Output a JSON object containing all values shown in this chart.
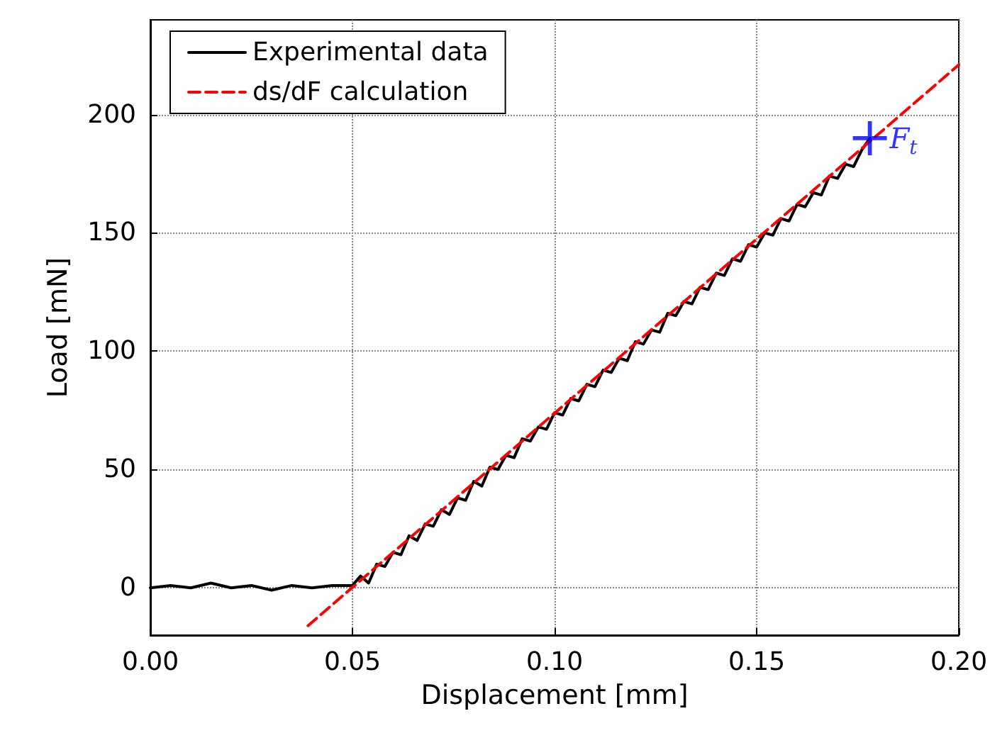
{
  "chart_data": {
    "type": "line",
    "xlabel": "Displacement [mm]",
    "ylabel": "Load [mN]",
    "xlim": [
      0,
      0.2
    ],
    "ylim": [
      -20,
      240
    ],
    "xticks": [
      {
        "value": 0,
        "label": "0.00"
      },
      {
        "value": 0.05,
        "label": "0.05"
      },
      {
        "value": 0.1,
        "label": "0.10"
      },
      {
        "value": 0.15,
        "label": "0.15"
      },
      {
        "value": 0.2,
        "label": "0.20"
      }
    ],
    "yticks": [
      0,
      50,
      100,
      150,
      200
    ],
    "grid": true,
    "legend": "top left",
    "marker": "none",
    "series": [
      {
        "name": "Experimental data",
        "color": "#000000",
        "line_style": "solid",
        "x": [
          0,
          0.005,
          0.01,
          0.015,
          0.02,
          0.025,
          0.03,
          0.035,
          0.04,
          0.045,
          0.05,
          0.052,
          0.054,
          0.056,
          0.058,
          0.06,
          0.062,
          0.064,
          0.066,
          0.068,
          0.07,
          0.072,
          0.074,
          0.076,
          0.078,
          0.08,
          0.082,
          0.084,
          0.086,
          0.088,
          0.09,
          0.092,
          0.094,
          0.096,
          0.098,
          0.1,
          0.102,
          0.104,
          0.106,
          0.108,
          0.11,
          0.112,
          0.114,
          0.116,
          0.118,
          0.12,
          0.122,
          0.124,
          0.126,
          0.128,
          0.13,
          0.132,
          0.134,
          0.136,
          0.138,
          0.14,
          0.142,
          0.144,
          0.146,
          0.148,
          0.15,
          0.152,
          0.154,
          0.156,
          0.158,
          0.16,
          0.162,
          0.164,
          0.166,
          0.168,
          0.17,
          0.172,
          0.174,
          0.176,
          0.178
        ],
        "values": [
          0,
          1,
          0,
          2,
          0,
          1,
          -1,
          1,
          0,
          1,
          1,
          5,
          2,
          10,
          9,
          15,
          14,
          22,
          20,
          27,
          26,
          33,
          31,
          38,
          37,
          45,
          43,
          51,
          50,
          56,
          55,
          63,
          62,
          68,
          67,
          74,
          73,
          80,
          79,
          86,
          85,
          92,
          91,
          97,
          96,
          104,
          103,
          109,
          108,
          116,
          115,
          121,
          120,
          127,
          126,
          133,
          132,
          139,
          138,
          145,
          144,
          150,
          149,
          156,
          155,
          162,
          161,
          167,
          166,
          174,
          173,
          179,
          178,
          185,
          190
        ]
      },
      {
        "name": "ds/dF calculation",
        "color": "#ff0000",
        "line_style": "dashed",
        "x": [
          0.039,
          0.2
        ],
        "values": [
          -16,
          221
        ]
      },
      {
        "type": "scatter",
        "marker": "cross",
        "color": "#0000ff",
        "x": [
          0.178
        ],
        "values": [
          190
        ]
      }
    ],
    "annotations": [
      {
        "text": "F$_{t}$",
        "x": 0.178,
        "y": 190
      }
    ]
  }
}
